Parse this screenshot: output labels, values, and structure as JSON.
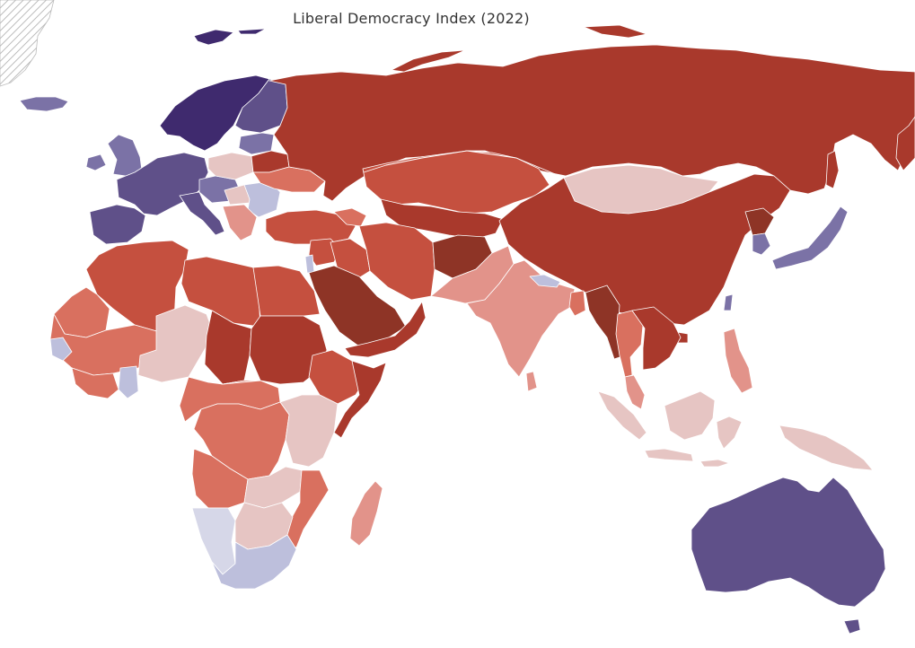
{
  "map": {
    "title": "Liberal Democracy Index (2022)",
    "colors": {
      "dem_darkest": "#3f2a6e",
      "dem_dark": "#5f5089",
      "dem_mid": "#7b72a6",
      "dem_light": "#bdbfdc",
      "dem_pale": "#d6d7e8",
      "aut_pale": "#e6c5c3",
      "aut_light": "#e2938a",
      "aut_mid": "#d9705f",
      "aut_strong": "#c5503f",
      "aut_dark": "#a9392c",
      "aut_darkest": "#8e3426",
      "no_data_hatch": "#aaaaaa"
    },
    "regions": [
      {
        "name": "greenland",
        "color": "no_data_hatch"
      },
      {
        "name": "iceland",
        "color": "dem_mid"
      },
      {
        "name": "scandinavia",
        "color": "dem_darkest"
      },
      {
        "name": "finland",
        "color": "dem_dark"
      },
      {
        "name": "baltics",
        "color": "dem_mid"
      },
      {
        "name": "uk-ireland",
        "color": "dem_mid"
      },
      {
        "name": "western-europe",
        "color": "dem_dark"
      },
      {
        "name": "iberia",
        "color": "dem_dark"
      },
      {
        "name": "italy",
        "color": "dem_dark"
      },
      {
        "name": "central-europe",
        "color": "dem_mid"
      },
      {
        "name": "poland",
        "color": "aut_pale"
      },
      {
        "name": "hungary",
        "color": "aut_pale"
      },
      {
        "name": "romania-bulgaria",
        "color": "dem_light"
      },
      {
        "name": "balkans",
        "color": "aut_light"
      },
      {
        "name": "belarus",
        "color": "aut_dark"
      },
      {
        "name": "ukraine",
        "color": "aut_mid"
      },
      {
        "name": "turkey",
        "color": "aut_strong"
      },
      {
        "name": "caucasus",
        "color": "aut_mid"
      },
      {
        "name": "russia",
        "color": "aut_dark"
      },
      {
        "name": "kazakhstan",
        "color": "aut_strong"
      },
      {
        "name": "central-asia",
        "color": "aut_dark"
      },
      {
        "name": "mongolia",
        "color": "aut_pale"
      },
      {
        "name": "china",
        "color": "aut_dark"
      },
      {
        "name": "north-korea",
        "color": "aut_darkest"
      },
      {
        "name": "south-korea",
        "color": "dem_mid"
      },
      {
        "name": "japan",
        "color": "dem_mid"
      },
      {
        "name": "taiwan",
        "color": "dem_mid"
      },
      {
        "name": "levant",
        "color": "aut_strong"
      },
      {
        "name": "israel",
        "color": "dem_light"
      },
      {
        "name": "iraq",
        "color": "aut_strong"
      },
      {
        "name": "iran",
        "color": "aut_strong"
      },
      {
        "name": "afghanistan",
        "color": "aut_darkest"
      },
      {
        "name": "pakistan",
        "color": "aut_light"
      },
      {
        "name": "arabia",
        "color": "aut_darkest"
      },
      {
        "name": "yemen-oman",
        "color": "aut_dark"
      },
      {
        "name": "india",
        "color": "aut_light"
      },
      {
        "name": "nepal",
        "color": "dem_light"
      },
      {
        "name": "bangladesh",
        "color": "aut_mid"
      },
      {
        "name": "sri-lanka",
        "color": "aut_light"
      },
      {
        "name": "myanmar",
        "color": "aut_darkest"
      },
      {
        "name": "thailand",
        "color": "aut_mid"
      },
      {
        "name": "indochina",
        "color": "aut_dark"
      },
      {
        "name": "malaysia",
        "color": "aut_light"
      },
      {
        "name": "sumatra",
        "color": "aut_pale"
      },
      {
        "name": "borneo",
        "color": "aut_pale"
      },
      {
        "name": "sulawesi-java",
        "color": "aut_pale"
      },
      {
        "name": "philippines",
        "color": "aut_light"
      },
      {
        "name": "new-guinea",
        "color": "aut_pale"
      },
      {
        "name": "australia",
        "color": "dem_dark"
      },
      {
        "name": "tasmania",
        "color": "dem_dark"
      },
      {
        "name": "morocco-algeria",
        "color": "aut_strong"
      },
      {
        "name": "mauritania",
        "color": "aut_mid"
      },
      {
        "name": "libya",
        "color": "aut_strong"
      },
      {
        "name": "egypt",
        "color": "aut_strong"
      },
      {
        "name": "west-africa",
        "color": "aut_mid"
      },
      {
        "name": "senegal-ghana",
        "color": "dem_light"
      },
      {
        "name": "niger-nigeria",
        "color": "aut_pale"
      },
      {
        "name": "chad",
        "color": "aut_dark"
      },
      {
        "name": "sudan",
        "color": "aut_dark"
      },
      {
        "name": "ethiopia",
        "color": "aut_strong"
      },
      {
        "name": "somalia",
        "color": "aut_dark"
      },
      {
        "name": "central-africa",
        "color": "aut_mid"
      },
      {
        "name": "drc",
        "color": "aut_mid"
      },
      {
        "name": "east-africa",
        "color": "aut_pale"
      },
      {
        "name": "angola",
        "color": "aut_mid"
      },
      {
        "name": "zambia-malawi",
        "color": "aut_pale"
      },
      {
        "name": "mozambique",
        "color": "aut_mid"
      },
      {
        "name": "madagascar",
        "color": "aut_light"
      },
      {
        "name": "namibia",
        "color": "dem_pale"
      },
      {
        "name": "botswana-zimbabwe",
        "color": "aut_pale"
      },
      {
        "name": "south-africa",
        "color": "dem_light"
      }
    ]
  }
}
